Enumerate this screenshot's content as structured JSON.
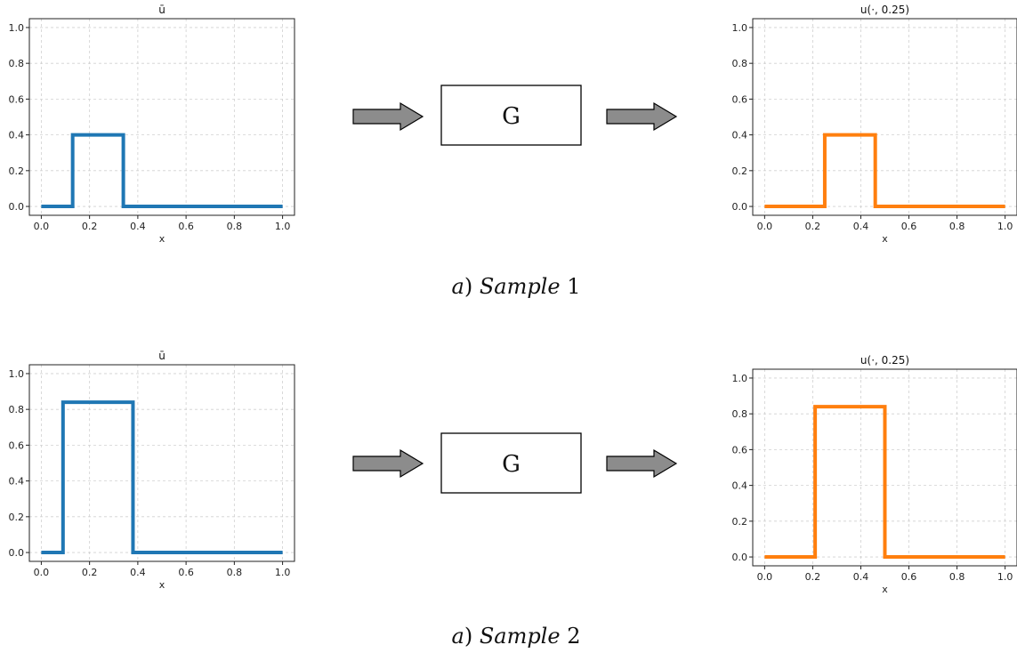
{
  "rows": [
    {
      "caption_prefix": "a",
      "caption_word": "Sample",
      "caption_num": "1",
      "operator_label": "G",
      "input_plot": {
        "title": "ū",
        "xlabel": "x",
        "color": "#1f77b4",
        "xlim": [
          0.0,
          1.0
        ],
        "ylim": [
          0.0,
          1.0
        ],
        "xticks": [
          "0.0",
          "0.2",
          "0.4",
          "0.6",
          "0.8",
          "1.0"
        ],
        "yticks": [
          "0.0",
          "0.2",
          "0.4",
          "0.6",
          "0.8",
          "1.0"
        ],
        "x": [
          0.0,
          0.13,
          0.13,
          0.34,
          0.34,
          1.0
        ],
        "y": [
          0.0,
          0.0,
          0.4,
          0.4,
          0.0,
          0.0
        ]
      },
      "output_plot": {
        "title": "u(·, 0.25)",
        "xlabel": "x",
        "color": "#ff7f0e",
        "xlim": [
          0.0,
          1.0
        ],
        "ylim": [
          0.0,
          1.0
        ],
        "xticks": [
          "0.0",
          "0.2",
          "0.4",
          "0.6",
          "0.8",
          "1.0"
        ],
        "yticks": [
          "0.0",
          "0.2",
          "0.4",
          "0.6",
          "0.8",
          "1.0"
        ],
        "x": [
          0.0,
          0.25,
          0.25,
          0.46,
          0.46,
          1.0
        ],
        "y": [
          0.0,
          0.0,
          0.4,
          0.4,
          0.0,
          0.0
        ]
      }
    },
    {
      "caption_prefix": "a",
      "caption_word": "Sample",
      "caption_num": "2",
      "operator_label": "G",
      "input_plot": {
        "title": "ū",
        "xlabel": "x",
        "color": "#1f77b4",
        "xlim": [
          0.0,
          1.0
        ],
        "ylim": [
          0.0,
          1.0
        ],
        "xticks": [
          "0.0",
          "0.2",
          "0.4",
          "0.6",
          "0.8",
          "1.0"
        ],
        "yticks": [
          "0.0",
          "0.2",
          "0.4",
          "0.6",
          "0.8",
          "1.0"
        ],
        "x": [
          0.0,
          0.09,
          0.09,
          0.38,
          0.38,
          1.0
        ],
        "y": [
          0.0,
          0.0,
          0.84,
          0.84,
          0.0,
          0.0
        ]
      },
      "output_plot": {
        "title": "u(·, 0.25)",
        "xlabel": "x",
        "color": "#ff7f0e",
        "xlim": [
          0.0,
          1.0
        ],
        "ylim": [
          0.0,
          1.0
        ],
        "xticks": [
          "0.0",
          "0.2",
          "0.4",
          "0.6",
          "0.8",
          "1.0"
        ],
        "yticks": [
          "0.0",
          "0.2",
          "0.4",
          "0.6",
          "0.8",
          "1.0"
        ],
        "x": [
          0.0,
          0.21,
          0.21,
          0.5,
          0.5,
          1.0
        ],
        "y": [
          0.0,
          0.0,
          0.84,
          0.84,
          0.0,
          0.0
        ]
      }
    }
  ]
}
